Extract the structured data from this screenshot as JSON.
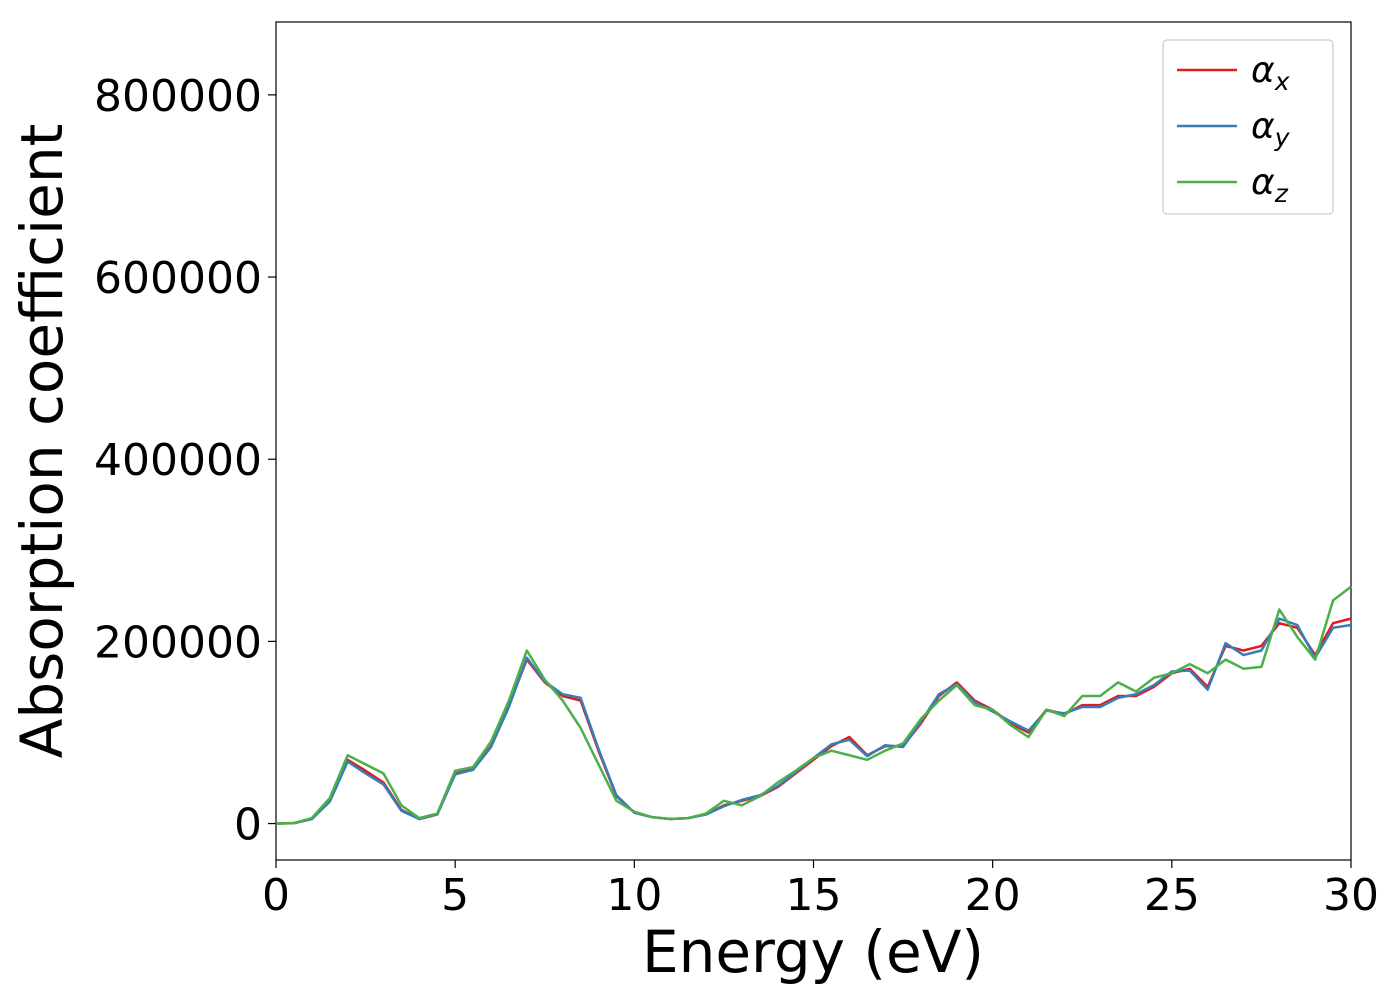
{
  "chart_data": {
    "type": "line",
    "xlabel": "Energy (eV)",
    "ylabel": "Absorption coefficient",
    "x": [
      0,
      0.5,
      1,
      1.5,
      2,
      2.5,
      3,
      3.5,
      4,
      4.5,
      5,
      5.5,
      6,
      6.5,
      7,
      7.5,
      8,
      8.5,
      9,
      9.5,
      10,
      10.5,
      11,
      11.5,
      12,
      12.5,
      13,
      13.5,
      14,
      14.5,
      15,
      15.5,
      16,
      16.5,
      17,
      17.5,
      18,
      18.5,
      19,
      19.5,
      20,
      20.5,
      21,
      21.5,
      22,
      22.5,
      23,
      23.5,
      24,
      24.5,
      25,
      25.5,
      26,
      26.5,
      27,
      27.5,
      28,
      28.5,
      29,
      29.5,
      30
    ],
    "series": [
      {
        "name": "αx",
        "color": "#e41a1c",
        "values": [
          0,
          500,
          5000,
          25000,
          70000,
          58000,
          45000,
          15000,
          5000,
          10000,
          55000,
          60000,
          85000,
          130000,
          180000,
          155000,
          140000,
          135000,
          80000,
          30000,
          12000,
          7000,
          5000,
          6000,
          10000,
          20000,
          25000,
          30000,
          40000,
          55000,
          70000,
          85000,
          95000,
          75000,
          85000,
          85000,
          110000,
          140000,
          155000,
          135000,
          125000,
          110000,
          100000,
          125000,
          120000,
          130000,
          130000,
          140000,
          140000,
          150000,
          165000,
          170000,
          150000,
          195000,
          190000,
          195000,
          220000,
          215000,
          185000,
          220000,
          225000
        ]
      },
      {
        "name": "αy",
        "color": "#377eb8",
        "values": [
          0,
          500,
          5000,
          24000,
          68000,
          55000,
          43000,
          14000,
          5000,
          10000,
          54000,
          59000,
          84000,
          128000,
          182000,
          156000,
          142000,
          138000,
          82000,
          31000,
          12000,
          7000,
          5000,
          6000,
          10000,
          19000,
          26000,
          31000,
          41000,
          56000,
          72000,
          87000,
          92000,
          74000,
          86000,
          84000,
          112000,
          142000,
          153000,
          133000,
          123000,
          112000,
          102000,
          124000,
          121000,
          128000,
          128000,
          138000,
          142000,
          152000,
          167000,
          168000,
          147000,
          198000,
          185000,
          190000,
          225000,
          218000,
          182000,
          215000,
          218000
        ]
      },
      {
        "name": "αz",
        "color": "#4daf4a",
        "values": [
          0,
          600,
          6000,
          28000,
          75000,
          65000,
          55000,
          20000,
          6000,
          11000,
          58000,
          62000,
          90000,
          135000,
          190000,
          158000,
          135000,
          105000,
          65000,
          25000,
          13000,
          7000,
          5000,
          6000,
          11000,
          25000,
          20000,
          30000,
          45000,
          58000,
          72000,
          80000,
          75000,
          70000,
          80000,
          88000,
          115000,
          135000,
          152000,
          130000,
          125000,
          108000,
          95000,
          125000,
          118000,
          140000,
          140000,
          155000,
          145000,
          160000,
          165000,
          175000,
          165000,
          180000,
          170000,
          172000,
          235000,
          205000,
          180000,
          245000,
          260000
        ]
      }
    ],
    "xlim": [
      0,
      30
    ],
    "ylim": [
      -40000,
      880000
    ],
    "xticks": [
      0,
      5,
      10,
      15,
      20,
      25,
      30
    ],
    "yticks": [
      0,
      200000,
      400000,
      600000,
      800000
    ],
    "legend": "upper right"
  }
}
